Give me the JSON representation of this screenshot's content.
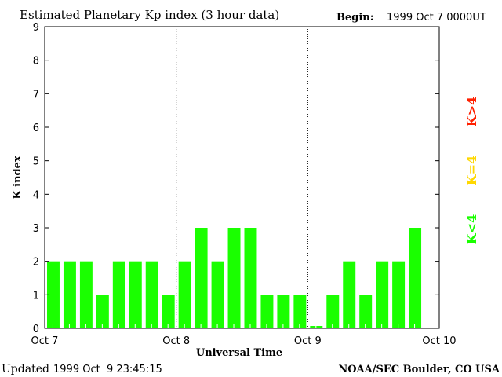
{
  "chart_data": {
    "type": "bar",
    "title": "Estimated Planetary Kp index (3 hour data)",
    "begin_label": "Begin:",
    "begin_value": "1999 Oct 7 0000UT",
    "xlabel": "Universal Time",
    "ylabel": "K index",
    "ylim": [
      0,
      9
    ],
    "yticks": [
      "0",
      "1",
      "2",
      "3",
      "4",
      "5",
      "6",
      "7",
      "8",
      "9"
    ],
    "xticks": [
      "Oct 7",
      "Oct 8",
      "Oct 9",
      "Oct 10"
    ],
    "interval_hours": 3,
    "values": [
      2,
      2,
      2,
      1,
      2,
      2,
      2,
      1,
      2,
      3,
      2,
      3,
      3,
      1,
      1,
      1,
      0,
      1,
      2,
      1,
      2,
      2,
      3
    ],
    "legend": [
      {
        "label": "K<4",
        "color": "#1aff00"
      },
      {
        "label": "K=4",
        "color": "#ffd800"
      },
      {
        "label": "K>4",
        "color": "#ff2000"
      }
    ],
    "bar_color": "#1aff00"
  },
  "footer": {
    "updated_label": "Updated",
    "updated_value": "1999 Oct  9 23:45:15",
    "source": "NOAA/SEC Boulder, CO USA"
  }
}
